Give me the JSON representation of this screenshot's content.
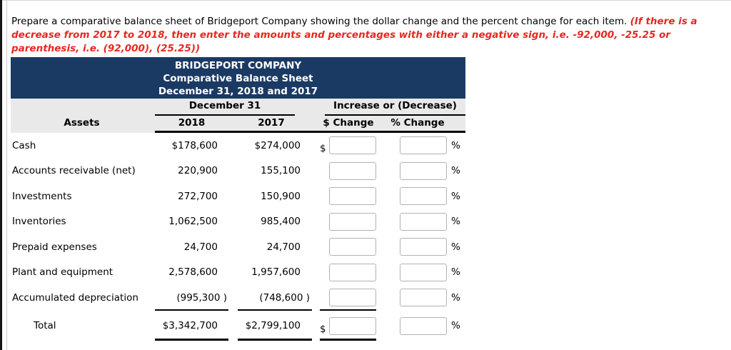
{
  "instructions": {
    "black_text": "Prepare a comparative balance sheet of Bridgeport Company showing the dollar change and the percent change for each item. ",
    "red_text": "(If there is a decrease from 2017 to 2018, then enter the amounts and percentages with either a negative sign, i.e. -92,000, -25.25 or parenthesis, i.e. (92,000), (25.25))"
  },
  "balance_sheet": {
    "header": {
      "company": "BRIDGEPORT COMPANY",
      "title": "Comparative Balance Sheet",
      "period": "December 31, 2018 and 2017"
    },
    "column_groups": {
      "left": "December 31",
      "right": "Increase or (Decrease)"
    },
    "columns": {
      "section": "Assets",
      "year1": "2018",
      "year2": "2017",
      "dollar_change": "$ Change",
      "percent_change": "% Change"
    },
    "symbols": {
      "dollar": "$",
      "percent": "%"
    },
    "rows": [
      {
        "label": "Cash",
        "amount_2018": "$178,600",
        "amount_2017": "$274,000",
        "show_dollar_sign": true
      },
      {
        "label": "Accounts receivable (net)",
        "amount_2018": "220,900",
        "amount_2017": "155,100"
      },
      {
        "label": "Investments",
        "amount_2018": "272,700",
        "amount_2017": "150,900"
      },
      {
        "label": "Inventories",
        "amount_2018": "1,062,500",
        "amount_2017": "985,400"
      },
      {
        "label": "Prepaid expenses",
        "amount_2018": "24,700",
        "amount_2017": "24,700"
      },
      {
        "label": "Plant and equipment",
        "amount_2018": "2,578,600",
        "amount_2017": "1,957,600"
      },
      {
        "label": "Accumulated depreciation",
        "amount_2018": "(995,300 )",
        "amount_2017": "(748,600 )",
        "rule_after": true
      },
      {
        "label": "Total",
        "amount_2018": "$3,342,700",
        "amount_2017": "$2,799,100",
        "show_dollar_sign": true,
        "is_total": true
      }
    ],
    "input_fields": {
      "dollar_change_value": "",
      "percent_change_value": ""
    }
  },
  "colors": {
    "banner_bg": "#1a3a64",
    "banner_text": "#ffffff",
    "subhead_bg": "#e9e9e9",
    "instruction_red": "#e8271f",
    "input_border": "#b2b2b2"
  }
}
